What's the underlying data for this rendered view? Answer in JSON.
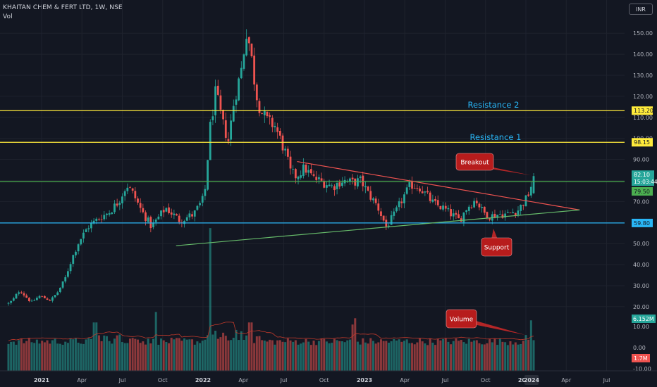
{
  "header": {
    "symbol": "KHAITAN CHEM & FERT LTD, 1W, NSE",
    "indicator": "Vol",
    "currency": "INR"
  },
  "chart_data": {
    "type": "candlestick",
    "price_axis_ticks": [
      "150.00",
      "140.00",
      "130.00",
      "120.00",
      "110.00",
      "100.00",
      "90.00",
      "80.00",
      "70.00",
      "60.00",
      "50.00",
      "40.00",
      "30.00",
      "20.00"
    ],
    "volume_axis_ticks": [
      "10.00",
      "0.00",
      "-10.00"
    ],
    "time_axis_labels": [
      "2021",
      "Apr",
      "Jul",
      "Oct",
      "2022",
      "Apr",
      "Jul",
      "Oct",
      "2023",
      "Apr",
      "Jul",
      "Oct",
      "2024",
      "Apr",
      "Jul"
    ],
    "horizontal_levels": [
      {
        "name": "Resistance 2",
        "value": 113.2,
        "label": "113.20",
        "color": "#ffeb3b"
      },
      {
        "name": "Resistance 1",
        "value": 98.15,
        "label": "98.15",
        "color": "#ffeb3b"
      },
      {
        "name": "Breakout level",
        "value": 79.5,
        "label": "79.50",
        "color": "#4caf50"
      },
      {
        "name": "Support",
        "value": 59.8,
        "label": "59.80",
        "color": "#29b6f6"
      }
    ],
    "last_price": {
      "value": 82.1,
      "label": "82.10",
      "countdown": "15:03:44"
    },
    "volume_last": {
      "label": "6.152M"
    },
    "volume_ma": {
      "label": "1.7M"
    },
    "annotations": [
      "Resistance 2",
      "Resistance 1",
      "Breakout",
      "Support",
      "Volume"
    ],
    "trendlines": [
      {
        "name": "descending",
        "color": "#ef5350",
        "from": {
          "date": "2022-08",
          "value": 89
        },
        "to": {
          "date": "2024-05",
          "value": 66
        }
      },
      {
        "name": "ascending",
        "color": "#66bb6a",
        "from": {
          "date": "2021-11",
          "value": 49
        },
        "to": {
          "date": "2024-05",
          "value": 66
        }
      }
    ],
    "colors": {
      "up": "#26a69a",
      "down": "#ef5350",
      "background": "#131722"
    }
  }
}
